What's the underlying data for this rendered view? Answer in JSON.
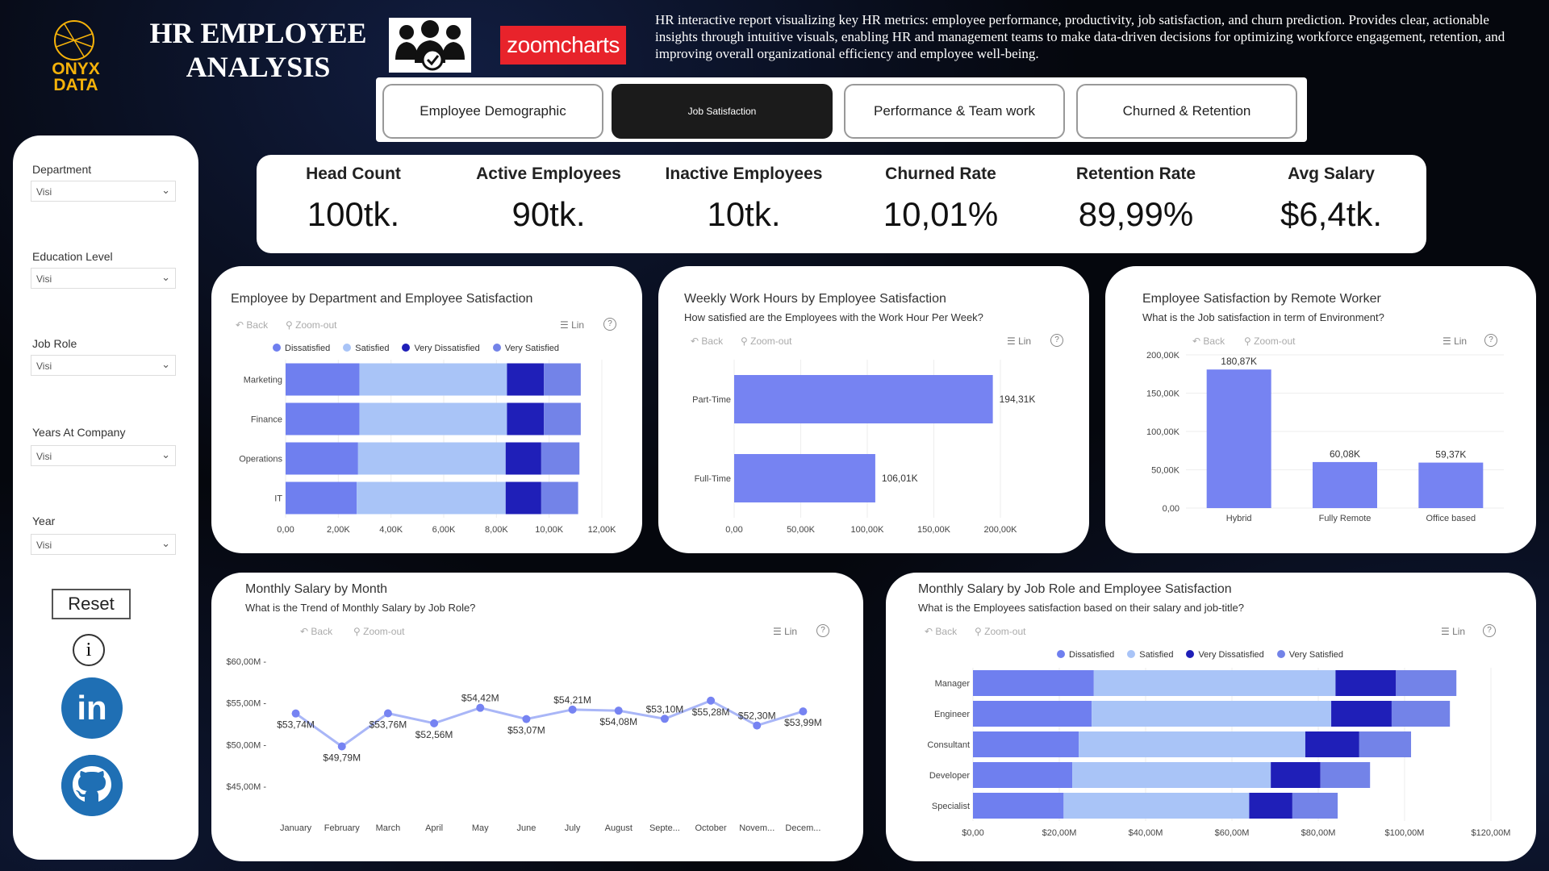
{
  "header": {
    "title": "HR EMPLOYEE ANALYSIS",
    "brand": "ONYX DATA",
    "partner": "zoomcharts",
    "description": "HR interactive report visualizing key HR metrics: employee performance, productivity, job satisfaction, and churn prediction. Provides clear, actionable insights through intuitive visuals, enabling HR and management teams to make data-driven decisions for optimizing workforce engagement, retention, and improving overall organizational efficiency and employee well-being."
  },
  "tabs": [
    {
      "label": "Employee Demographic",
      "active": false
    },
    {
      "label": "Job Satisfaction",
      "active": true
    },
    {
      "label": "Performance & Team work",
      "active": false
    },
    {
      "label": "Churned & Retention",
      "active": false
    }
  ],
  "filters": [
    {
      "label": "Department",
      "value": "Visi"
    },
    {
      "label": "Education Level",
      "value": "Visi"
    },
    {
      "label": "Job Role",
      "value": "Visi"
    },
    {
      "label": "Years At Company",
      "value": "Visi"
    },
    {
      "label": "Year",
      "value": "Visi"
    }
  ],
  "sidebar": {
    "reset_label": "Reset",
    "info_glyph": "i",
    "linkedin_glyph": "in",
    "icons": [
      "info-icon",
      "linkedin-icon",
      "github-icon"
    ]
  },
  "kpis": [
    {
      "label": "Head Count",
      "value": "100tk."
    },
    {
      "label": "Active Employees",
      "value": "90tk."
    },
    {
      "label": "Inactive Employees",
      "value": "10tk."
    },
    {
      "label": "Churned Rate",
      "value": "10,01%"
    },
    {
      "label": "Retention Rate",
      "value": "89,99%"
    },
    {
      "label": "Avg Salary",
      "value": "$6,4tk."
    }
  ],
  "toolbar": {
    "back": "Back",
    "zoom_out": "Zoom-out",
    "lin": "Lin",
    "help": "?"
  },
  "colors": {
    "dissatisfied": "#6f7fef",
    "satisfied": "#a9c4f7",
    "very_dissatisfied": "#1f1fb8",
    "very_satisfied": "#7383e8",
    "bar": "#7683f2"
  },
  "chart_data": [
    {
      "id": "dept",
      "type": "bar",
      "orientation": "horizontal",
      "stacked": true,
      "title": "Employee by Department and Employee Satisfaction",
      "categories": [
        "Marketing",
        "Finance",
        "Operations",
        "IT"
      ],
      "series": [
        {
          "name": "Dissatisfied",
          "values": [
            2800,
            2800,
            2750,
            2700
          ]
        },
        {
          "name": "Satisfied",
          "values": [
            5600,
            5600,
            5600,
            5650
          ]
        },
        {
          "name": "Very Dissatisfied",
          "values": [
            1400,
            1400,
            1350,
            1350
          ]
        },
        {
          "name": "Very Satisfied",
          "values": [
            1400,
            1400,
            1450,
            1400
          ]
        }
      ],
      "xticks": [
        "0,00",
        "2,00K",
        "4,00K",
        "6,00K",
        "8,00K",
        "10,00K",
        "12,00K"
      ],
      "xlim": [
        0,
        12000
      ],
      "legend": "top"
    },
    {
      "id": "hours",
      "type": "bar",
      "orientation": "horizontal",
      "title": "Weekly Work Hours by Employee Satisfaction",
      "subtitle": "How satisfied are the Employees with the Work Hour Per Week?",
      "categories": [
        "Part-Time",
        "Full-Time"
      ],
      "values": [
        194310,
        106010
      ],
      "labels": [
        "194,31K",
        "106,01K"
      ],
      "xticks": [
        "0,00",
        "50,00K",
        "100,00K",
        "150,00K",
        "200,00K"
      ],
      "xlim": [
        0,
        200000
      ]
    },
    {
      "id": "remote",
      "type": "bar",
      "title": "Employee Satisfaction by Remote Worker",
      "subtitle": "What is the Job satisfaction in term of Environment?",
      "categories": [
        "Hybrid",
        "Fully Remote",
        "Office based"
      ],
      "values": [
        180870,
        60080,
        59370
      ],
      "labels": [
        "180,87K",
        "60,08K",
        "59,37K"
      ],
      "yticks": [
        "0,00",
        "50,00K",
        "100,00K",
        "150,00K",
        "200,00K"
      ],
      "ylim": [
        0,
        200000
      ]
    },
    {
      "id": "salary",
      "type": "line",
      "title": "Monthly Salary by Month",
      "subtitle": "What is the Trend of Monthly Salary by Job Role?",
      "categories": [
        "January",
        "February",
        "March",
        "April",
        "May",
        "June",
        "July",
        "August",
        "Septe...",
        "October",
        "Novem...",
        "Decem..."
      ],
      "values": [
        53.74,
        49.79,
        53.76,
        52.56,
        54.42,
        53.07,
        54.21,
        54.08,
        53.1,
        55.28,
        52.3,
        53.99
      ],
      "labels": [
        "$53,74M",
        "$49,79M",
        "$53,76M",
        "$52,56M",
        "$54,42M",
        "$53,07M",
        "$54,21M",
        "$54,08M",
        "$53,10M",
        "$55,28M",
        "$52,30M",
        "$53,99M"
      ],
      "yticks": [
        "$45,00M",
        "$50,00M",
        "$55,00M",
        "$60,00M"
      ],
      "ylim": [
        45,
        60
      ]
    },
    {
      "id": "role",
      "type": "bar",
      "orientation": "horizontal",
      "stacked": true,
      "title": "Monthly Salary by Job Role and Employee Satisfaction",
      "subtitle": "What is the Employees satisfaction based on their salary and job-title?",
      "categories": [
        "Manager",
        "Engineer",
        "Consultant",
        "Developer",
        "Specialist"
      ],
      "series": [
        {
          "name": "Dissatisfied",
          "values": [
            28,
            27.5,
            24.5,
            23,
            21
          ]
        },
        {
          "name": "Satisfied",
          "values": [
            56,
            55.5,
            52.5,
            46,
            43
          ]
        },
        {
          "name": "Very Dissatisfied",
          "values": [
            14,
            14,
            12.5,
            11.5,
            10
          ]
        },
        {
          "name": "Very Satisfied",
          "values": [
            14,
            13.5,
            12,
            11.5,
            10.5
          ]
        }
      ],
      "xticks": [
        "$0,00",
        "$20,00M",
        "$40,00M",
        "$60,00M",
        "$80,00M",
        "$100,00M",
        "$120,00M"
      ],
      "xlim": [
        0,
        120
      ],
      "legend": "top"
    }
  ]
}
